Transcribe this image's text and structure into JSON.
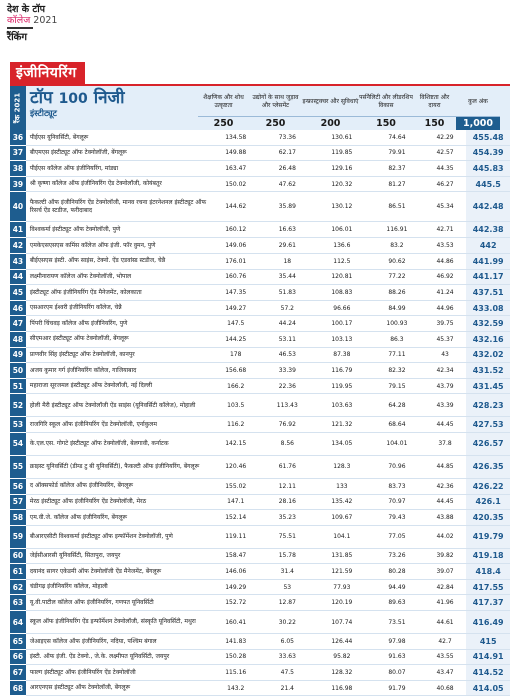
{
  "header": {
    "line1": "देश के टॉप",
    "line2": "कॉलेज",
    "year": "2021",
    "line3": "रैंकिंग"
  },
  "banner": "इंजीनियरिंग",
  "sidebar_label": "रैंक 2021",
  "table_title": {
    "top": "टॉप",
    "number": "100",
    "private": "निजी",
    "subtitle": "इंस्टीट्यूट"
  },
  "columns": [
    {
      "label": "शैक्षणिक और शोध उत्कृष्टता",
      "max": "250"
    },
    {
      "label": "उद्योगों के साथ जुड़ाव और प्लेसमेंट",
      "max": "250"
    },
    {
      "label": "इन्फ्रास्ट्रक्चर और सुविधाएं",
      "max": "200"
    },
    {
      "label": "पर्सनैलिटी और लीडरशिप विकास",
      "max": "150"
    },
    {
      "label": "विशिष्टता और दायरा",
      "max": "150"
    },
    {
      "label": "कुल अंक",
      "max": "1,000"
    }
  ],
  "rows": [
    {
      "rank": "36",
      "name": "पीईएस यूनिवर्सिटी, बेंगलूरू",
      "v": [
        "134.58",
        "73.36",
        "130.61",
        "74.64",
        "42.29"
      ],
      "total": "455.48"
    },
    {
      "rank": "37",
      "name": "बीएमएस इंस्टीट्यूट ऑफ टेक्नोलॉजी, बेंगलूरू",
      "v": [
        "149.88",
        "62.17",
        "119.85",
        "79.91",
        "42.57"
      ],
      "total": "454.39"
    },
    {
      "rank": "38",
      "name": "पीईएस कॉलेज ऑफ इंजीनियरिंग, मांड्या",
      "v": [
        "163.47",
        "26.48",
        "129.16",
        "82.37",
        "44.35"
      ],
      "total": "445.83"
    },
    {
      "rank": "39",
      "name": "श्री कृष्णा कॉलेज ऑफ इंजीनियरिंग ऐंड टेक्नोलॉजी, कोयंबतूर",
      "v": [
        "150.02",
        "47.62",
        "120.32",
        "81.27",
        "46.27"
      ],
      "total": "445.5"
    },
    {
      "rank": "40",
      "name": "फैकल्टी ऑफ इंजीनियरिंग ऐंड टेक्नोलॉजी, मानव रचना इंटरनेशनल इंस्टीट्यूट ऑफ रिसर्च ऐंड स्टडीज, फरीदाबाद",
      "v": [
        "144.62",
        "35.89",
        "130.12",
        "86.51",
        "45.34"
      ],
      "total": "442.48"
    },
    {
      "rank": "41",
      "name": "विश्वकर्मा इंस्टीट्यूट ऑफ टेक्नोलॉजी, पुणे",
      "v": [
        "160.12",
        "16.63",
        "106.01",
        "116.91",
        "42.71"
      ],
      "total": "442.38"
    },
    {
      "rank": "42",
      "name": "एमकेएसएसएस कमिंस कॉलेज ऑफ इंजी. फॉर वुमन, पुणे",
      "v": [
        "149.06",
        "29.61",
        "136.6",
        "83.2",
        "43.53"
      ],
      "total": "442"
    },
    {
      "rank": "43",
      "name": "बीईएसएस इंस्टी. ऑफ साइंस, टेक्नो. ऐंड एडवांस्ड स्टडीज, चेन्नै",
      "v": [
        "176.01",
        "18",
        "112.5",
        "90.62",
        "44.86"
      ],
      "total": "441.99"
    },
    {
      "rank": "44",
      "name": "लक्ष्मीनारायण कॉलेज ऑफ टेक्नोलॉजी, भोपाल",
      "v": [
        "160.76",
        "35.44",
        "120.81",
        "77.22",
        "46.92"
      ],
      "total": "441.17"
    },
    {
      "rank": "45",
      "name": "इंस्टीट्यूट ऑफ इंजीनियरिंग ऐंड मैनेजमेंट, कोलकाता",
      "v": [
        "147.35",
        "51.83",
        "108.83",
        "88.26",
        "41.24"
      ],
      "total": "437.51"
    },
    {
      "rank": "46",
      "name": "एसआरएम ईश्वरी इंजीनियरिंग कॉलेज, चेन्नै",
      "v": [
        "149.27",
        "57.2",
        "96.66",
        "84.99",
        "44.96"
      ],
      "total": "433.08"
    },
    {
      "rank": "47",
      "name": "पिंपरी चिंचवड़ कॉलेज ऑफ इंजीनियरिंग, पुणे",
      "v": [
        "147.5",
        "44.24",
        "100.17",
        "100.93",
        "39.75"
      ],
      "total": "432.59"
    },
    {
      "rank": "48",
      "name": "सीएमआर इंस्टीट्यूट ऑफ टेक्नोलॉजी, बेंगलूरू",
      "v": [
        "144.25",
        "53.11",
        "103.13",
        "86.3",
        "45.37"
      ],
      "total": "432.16"
    },
    {
      "rank": "49",
      "name": "प्राणवीर सिंह इंस्टीट्यूट ऑफ टेक्नोलॉजी, कानपुर",
      "v": [
        "178",
        "46.53",
        "87.38",
        "77.11",
        "43"
      ],
      "total": "432.02"
    },
    {
      "rank": "50",
      "name": "अजय कुमार गर्ग इंजीनियरिंग कॉलेज, गाजियाबाद",
      "v": [
        "156.68",
        "33.39",
        "116.79",
        "82.32",
        "42.34"
      ],
      "total": "431.52"
    },
    {
      "rank": "51",
      "name": "महाराजा सूरजमल इंस्टीट्यूट ऑफ टेक्नोलॉजी, नई दिल्ली",
      "v": [
        "166.2",
        "22.36",
        "119.95",
        "79.15",
        "43.79"
      ],
      "total": "431.45"
    },
    {
      "rank": "52",
      "name": "होली मैरी इंस्टीट्यूट ऑफ टेक्नोलॉजी ऐंड साइंस (यूनिवर्सिटी कॉलेज), मोहाली",
      "v": [
        "103.5",
        "113.43",
        "103.63",
        "64.28",
        "43.39"
      ],
      "total": "428.23"
    },
    {
      "rank": "53",
      "name": "राजगिरि स्कूल ऑफ इंजीनियरिंग ऐंड टेक्नोलॉजी, एर्नाकुलम",
      "v": [
        "116.2",
        "76.92",
        "121.32",
        "68.64",
        "44.45"
      ],
      "total": "427.53"
    },
    {
      "rank": "54",
      "name": "के.एल.एस. गोगटे इंस्टीट्यूट ऑफ टेक्नोलॉजी, बेलगावी, कर्नाटक",
      "v": [
        "142.15",
        "8.56",
        "134.05",
        "104.01",
        "37.8"
      ],
      "total": "426.57"
    },
    {
      "rank": "55",
      "name": "क्राइस्ट यूनिवर्सिटी (डीम्ड टु बी यूनिवर्सिटी), फैकल्टी ऑफ इंजीनियरिंग, बेंगलूरू",
      "v": [
        "120.46",
        "61.76",
        "128.3",
        "70.96",
        "44.85"
      ],
      "total": "426.35"
    },
    {
      "rank": "56",
      "name": "द ऑक्सफोर्ड कॉलेज ऑफ इंजीनियरिंग, बेंगलूरू",
      "v": [
        "155.02",
        "12.11",
        "133",
        "83.73",
        "42.36"
      ],
      "total": "426.22"
    },
    {
      "rank": "57",
      "name": "मेरठ इंस्टीट्यूट ऑफ इंजीनियरिंग ऐंड टेक्नोलॉजी, मेरठ",
      "v": [
        "147.1",
        "28.16",
        "135.42",
        "70.97",
        "44.45"
      ],
      "total": "426.1"
    },
    {
      "rank": "58",
      "name": "एम.वी.जे. कॉलेज ऑफ इंजीनियरिंग, बेंगलूरू",
      "v": [
        "152.14",
        "35.23",
        "109.67",
        "79.43",
        "43.88"
      ],
      "total": "420.35"
    },
    {
      "rank": "59",
      "name": "बीआरएसीटी विश्वकर्मा इंस्टीट्यूट ऑफ इन्फॉर्मेशन टेक्नोलॉजी, पुणे",
      "v": [
        "119.11",
        "75.51",
        "104.1",
        "77.05",
        "44.02"
      ],
      "total": "419.79"
    },
    {
      "rank": "60",
      "name": "जेईसीआरसी यूनिवर्सिटी, सितापुरा, जयपुर",
      "v": [
        "158.47",
        "15.78",
        "131.85",
        "73.26",
        "39.82"
      ],
      "total": "419.18"
    },
    {
      "rank": "61",
      "name": "दयानंद सागर एकेडमी ऑफ टेक्नोलॉजी ऐंड मैनेजमेंट, बेंगलूरू",
      "v": [
        "146.06",
        "31.4",
        "121.59",
        "80.28",
        "39.07"
      ],
      "total": "418.4"
    },
    {
      "rank": "62",
      "name": "चंडीगढ़ इंजीनियरिंग कॉलेज, मोहाली",
      "v": [
        "149.29",
        "53",
        "77.93",
        "94.49",
        "42.84"
      ],
      "total": "417.55"
    },
    {
      "rank": "63",
      "name": "यू.वी.पाटील कॉलेज ऑफ इंजीनियरिंग, गणपत यूनिवर्सिटी",
      "v": [
        "152.72",
        "12.87",
        "120.19",
        "89.63",
        "41.96"
      ],
      "total": "417.37"
    },
    {
      "rank": "64",
      "name": "स्कूल ऑफ इंजीनियरिंग ऐंड इन्फॉर्मेशन टेक्नोलॉजी, संस्कृति यूनिवर्सिटी, मथुरा",
      "v": [
        "160.41",
        "30.22",
        "107.74",
        "73.51",
        "44.61"
      ],
      "total": "416.49"
    },
    {
      "rank": "65",
      "name": "जेआइएस कॉलेज ऑफ इंजीनियरिंग, नदिया, पश्चिम बंगाल",
      "v": [
        "141.83",
        "6.05",
        "126.44",
        "97.98",
        "42.7"
      ],
      "total": "415"
    },
    {
      "rank": "66",
      "name": "इंस्टी. ऑफ इंजी. ऐंड टेक्नो., जे.के. लक्ष्मीपत यूनिवर्सिटी, जयपुर",
      "v": [
        "150.28",
        "33.63",
        "95.82",
        "91.63",
        "43.55"
      ],
      "total": "414.91"
    },
    {
      "rank": "67",
      "name": "फाल्ग इंस्टीट्यूट ऑफ इंजीनियरिंग ऐंड टेक्नोलॉजी",
      "v": [
        "115.16",
        "47.5",
        "128.32",
        "80.07",
        "43.47"
      ],
      "total": "414.52"
    },
    {
      "rank": "68",
      "name": "आरएनएस इंस्टीट्यूट ऑफ टेक्नोलॉजी, बेंगलूरू",
      "v": [
        "143.2",
        "21.4",
        "116.98",
        "91.79",
        "40.68"
      ],
      "total": "414.05"
    }
  ]
}
